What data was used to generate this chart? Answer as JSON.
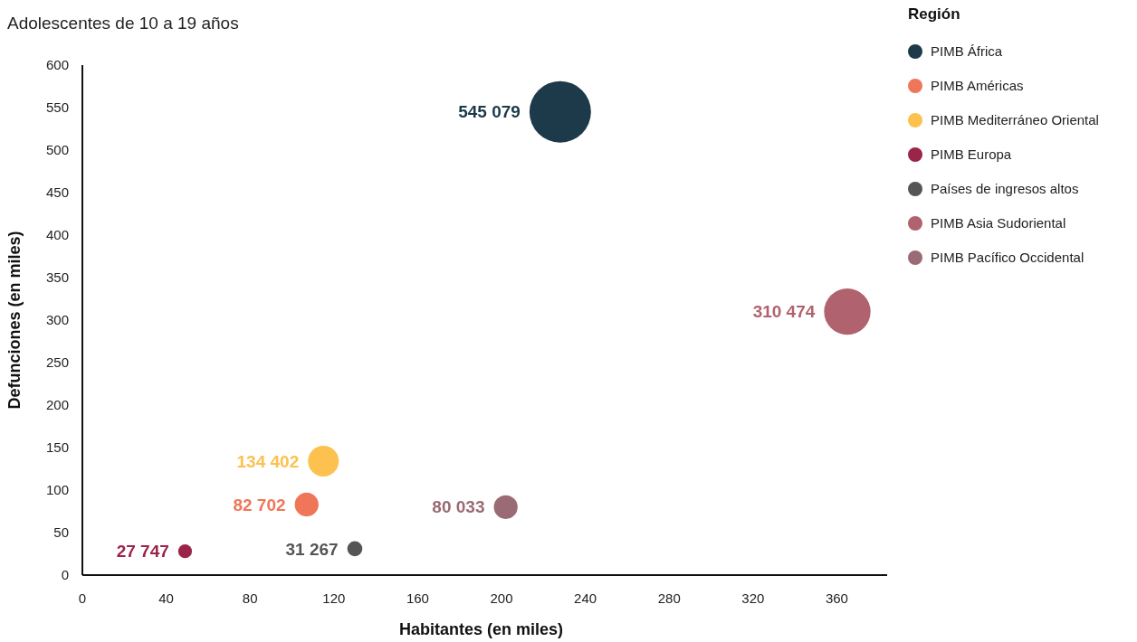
{
  "chart_data": {
    "type": "bubble",
    "title": "Adolescentes de 10 a 19 años",
    "xlabel": "Habitantes (en miles)",
    "ylabel": "Defunciones (en miles)",
    "legend_title": "Región",
    "legend": "right",
    "grid": false,
    "xlim": [
      0,
      384
    ],
    "xticks": [
      0,
      40,
      80,
      120,
      160,
      200,
      240,
      280,
      320,
      360
    ],
    "ylim": [
      0,
      600
    ],
    "yticks": [
      0,
      50,
      100,
      150,
      200,
      250,
      300,
      350,
      400,
      450,
      500,
      550,
      600
    ],
    "series": [
      {
        "name": "PIMB África",
        "color": "#1d3a4a",
        "x": [
          228
        ],
        "values": [
          545
        ],
        "sizes": [
          1
        ]
      },
      {
        "name": "PIMB Américas",
        "color": "#f0765a",
        "x": [
          107
        ],
        "values": [
          83
        ],
        "sizes": [
          0.15
        ]
      },
      {
        "name": "PIMB Mediterráneo Oriental",
        "color": "#fcc14e",
        "x": [
          115
        ],
        "values": [
          134
        ],
        "sizes": [
          0.25
        ]
      },
      {
        "name": "PIMB Europa",
        "color": "#9b2449",
        "x": [
          49
        ],
        "values": [
          28
        ],
        "sizes": [
          0.05
        ]
      },
      {
        "name": "Países de ingresos altos",
        "color": "#555555",
        "x": [
          130
        ],
        "values": [
          31
        ],
        "sizes": [
          0.06
        ]
      },
      {
        "name": "PIMB Asia Sudoriental",
        "color": "#b0636e",
        "x": [
          365
        ],
        "values": [
          310
        ],
        "sizes": [
          0.57
        ]
      },
      {
        "name": "PIMB Pacífico Occidental",
        "color": "#9a6b74",
        "x": [
          202
        ],
        "values": [
          80
        ],
        "sizes": [
          0.15
        ]
      }
    ],
    "annotations": [
      {
        "text": "545 079",
        "x": 228,
        "y": 545
      },
      {
        "text": "82 702",
        "x": 107,
        "y": 83
      },
      {
        "text": "134 402",
        "x": 115,
        "y": 134
      },
      {
        "text": "27 747",
        "x": 49,
        "y": 28
      },
      {
        "text": "31 267",
        "x": 130,
        "y": 31
      },
      {
        "text": "310 474",
        "x": 365,
        "y": 310
      },
      {
        "text": "80 033",
        "x": 202,
        "y": 80
      }
    ]
  }
}
